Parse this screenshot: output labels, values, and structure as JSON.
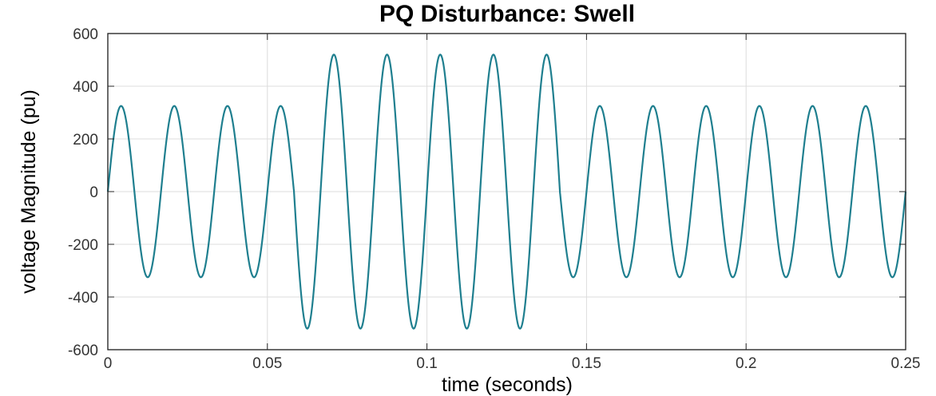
{
  "chart_data": {
    "type": "line",
    "title": "PQ Disturbance: Swell",
    "xlabel": "time (seconds)",
    "ylabel": "voltage Magnitude (pu)",
    "xlim": [
      0,
      0.25
    ],
    "ylim": [
      -600,
      600
    ],
    "xticks": [
      0,
      0.05,
      0.1,
      0.15,
      0.2,
      0.25
    ],
    "xtick_labels": [
      "0",
      "0.05",
      "0.1",
      "0.15",
      "0.2",
      "0.25"
    ],
    "yticks": [
      -600,
      -400,
      -200,
      0,
      200,
      400,
      600
    ],
    "ytick_labels": [
      "-600",
      "-400",
      "-200",
      "0",
      "200",
      "400",
      "600"
    ],
    "grid": true,
    "series": [
      {
        "color": "#1f7f8f",
        "frequency_hz": 60,
        "segments": [
          {
            "t_start": 0,
            "t_end": 0.0583,
            "amplitude": 325
          },
          {
            "t_start": 0.0583,
            "t_end": 0.1417,
            "amplitude": 520
          },
          {
            "t_start": 0.1417,
            "t_end": 0.25,
            "amplitude": 325
          }
        ]
      }
    ]
  }
}
